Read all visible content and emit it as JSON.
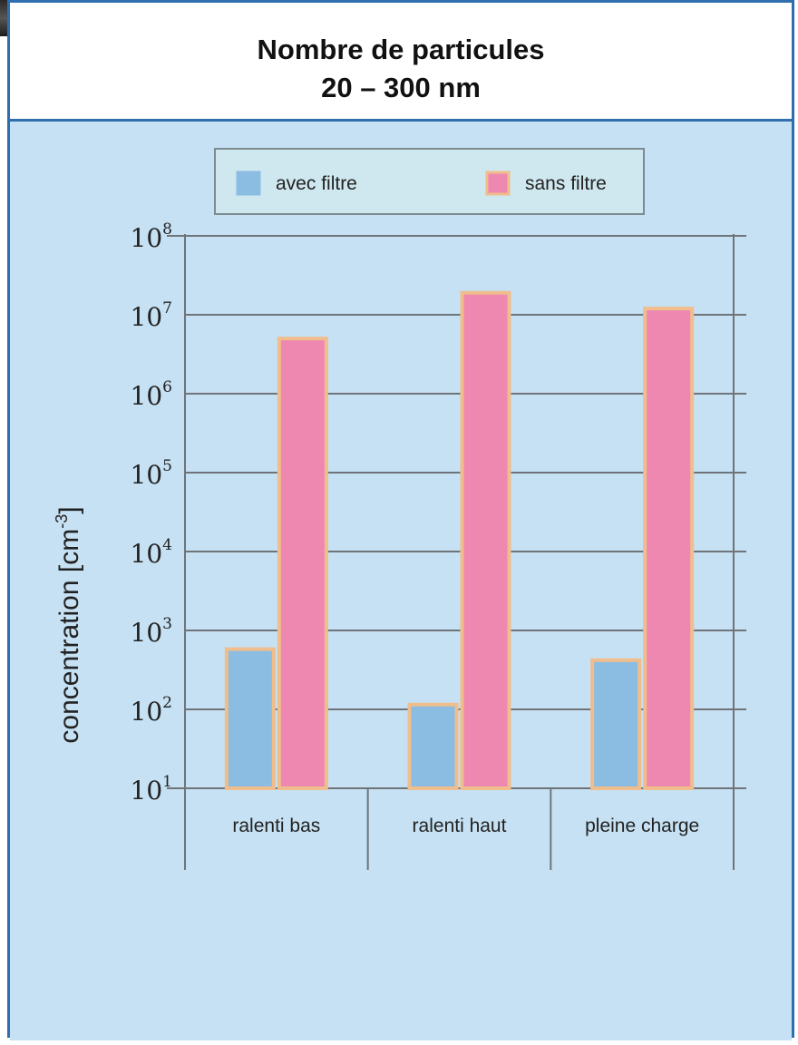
{
  "title": {
    "line1": "Nombre de particules",
    "line2": "20 – 300 nm"
  },
  "chart_data": {
    "type": "bar",
    "title": "Nombre de particules 20 – 300 nm",
    "xlabel": "",
    "ylabel": "concentration [cm-3]",
    "ylabel_parts": {
      "main": "concentration [cm",
      "sup": "-3",
      "close": "]"
    },
    "yscale": "log",
    "ylim": [
      10,
      100000000
    ],
    "yticks": [
      {
        "base": "10",
        "exp": "1"
      },
      {
        "base": "10",
        "exp": "2"
      },
      {
        "base": "10",
        "exp": "3"
      },
      {
        "base": "10",
        "exp": "4"
      },
      {
        "base": "10",
        "exp": "5"
      },
      {
        "base": "10",
        "exp": "6"
      },
      {
        "base": "10",
        "exp": "7"
      },
      {
        "base": "10",
        "exp": "8"
      }
    ],
    "categories": [
      "ralenti bas",
      "ralenti haut",
      "pleine charge"
    ],
    "series": [
      {
        "name": "avec filtre",
        "values": [
          580,
          115,
          420
        ]
      },
      {
        "name": "sans filtre",
        "values": [
          5000000,
          19000000,
          12000000
        ]
      }
    ],
    "legend_position": "top",
    "grid": true
  },
  "colors": {
    "background": "#c6e1f3",
    "avec_filtre": "#8bbde2",
    "sans_filtre": "#ee88b1",
    "bar_border": "#f0bd8c",
    "frame": "#2f6fae",
    "axis": "#6f7478"
  }
}
